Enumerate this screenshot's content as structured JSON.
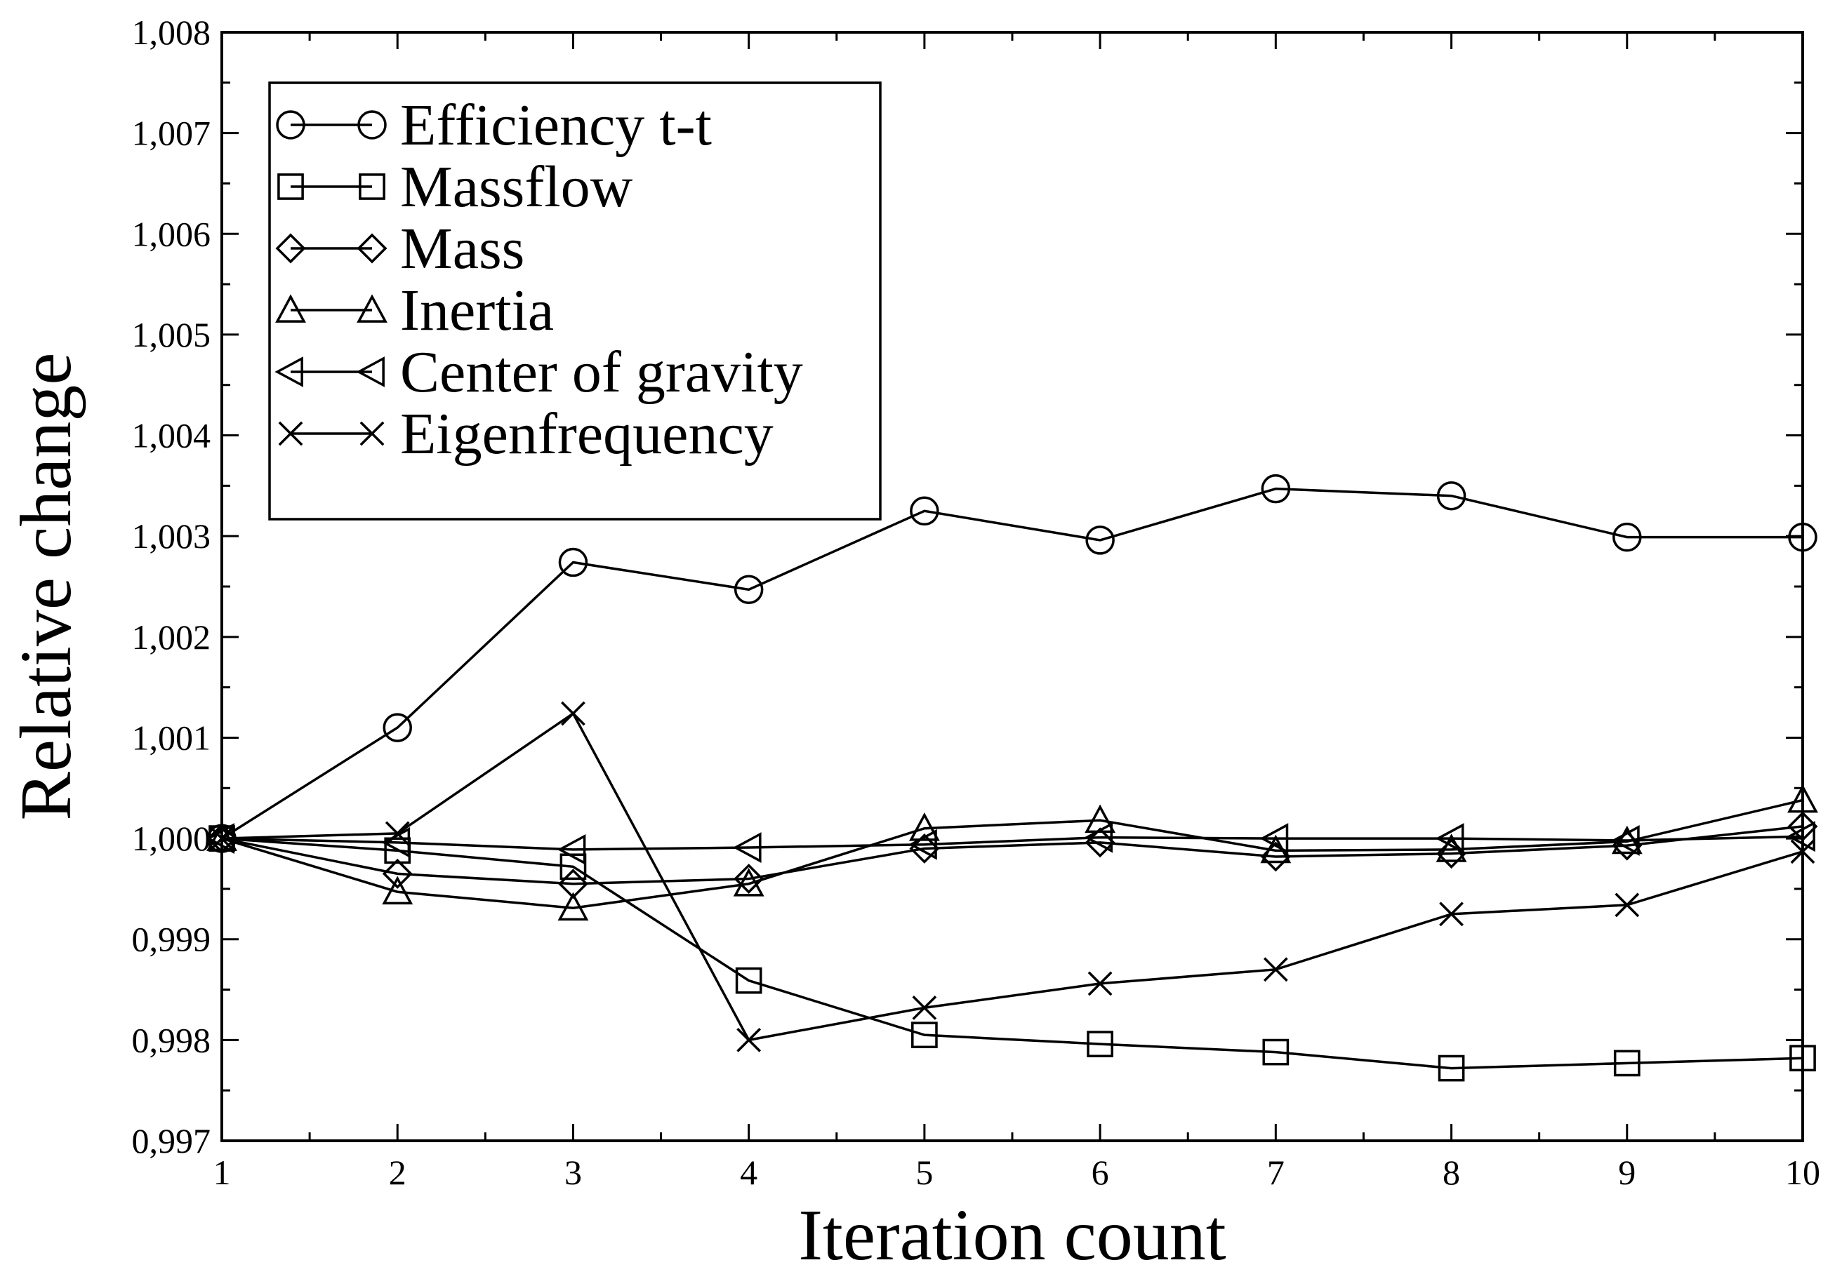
{
  "chart_data": {
    "type": "line",
    "title": "",
    "xlabel": "Iteration count",
    "ylabel": "Relative change",
    "x": [
      1,
      2,
      3,
      4,
      5,
      6,
      7,
      8,
      9,
      10
    ],
    "xlim": [
      1,
      10
    ],
    "ylim": [
      0.997,
      1.008
    ],
    "x_ticks": [
      "1",
      "2",
      "3",
      "4",
      "5",
      "6",
      "7",
      "8",
      "9",
      "10"
    ],
    "y_ticks": [
      {
        "value": 0.997,
        "label": "0,997"
      },
      {
        "value": 0.998,
        "label": "0,998"
      },
      {
        "value": 0.999,
        "label": "0,999"
      },
      {
        "value": 1.0,
        "label": "1,000"
      },
      {
        "value": 1.001,
        "label": "1,001"
      },
      {
        "value": 1.002,
        "label": "1,002"
      },
      {
        "value": 1.003,
        "label": "1,003"
      },
      {
        "value": 1.004,
        "label": "1,004"
      },
      {
        "value": 1.005,
        "label": "1,005"
      },
      {
        "value": 1.006,
        "label": "1,006"
      },
      {
        "value": 1.007,
        "label": "1,007"
      },
      {
        "value": 1.008,
        "label": "1,008"
      }
    ],
    "grid": false,
    "legend_position": "top-left",
    "series": [
      {
        "name": "Efficiency t-t",
        "marker": "circle",
        "values": [
          1.0,
          1.0011,
          1.00274,
          1.00247,
          1.00325,
          1.00296,
          1.00347,
          1.0034,
          1.00299,
          1.00299
        ]
      },
      {
        "name": "Massflow",
        "marker": "square",
        "values": [
          1.0,
          0.99988,
          0.99972,
          0.99859,
          0.99805,
          0.99796,
          0.99788,
          0.99772,
          0.99777,
          0.99782
        ]
      },
      {
        "name": "Mass",
        "marker": "diamond",
        "values": [
          1.0,
          0.99965,
          0.99955,
          0.9996,
          0.9999,
          0.99996,
          0.99982,
          0.99985,
          0.99993,
          1.00012
        ]
      },
      {
        "name": "Inertia",
        "marker": "triangle-up",
        "values": [
          1.0,
          0.99947,
          0.99931,
          0.99955,
          1.0001,
          1.00018,
          0.99988,
          0.99989,
          0.99997,
          1.00038
        ]
      },
      {
        "name": "Center of gravity",
        "marker": "triangle-left",
        "values": [
          1.0,
          0.99996,
          0.99989,
          0.99991,
          0.99994,
          1.00001,
          1.0,
          1.0,
          0.99998,
          1.00002
        ]
      },
      {
        "name": "Eigenfrequency",
        "marker": "x",
        "values": [
          1.0,
          1.00005,
          1.00124,
          0.998,
          0.99832,
          0.99856,
          0.9987,
          0.99925,
          0.99934,
          0.99987
        ]
      }
    ]
  }
}
